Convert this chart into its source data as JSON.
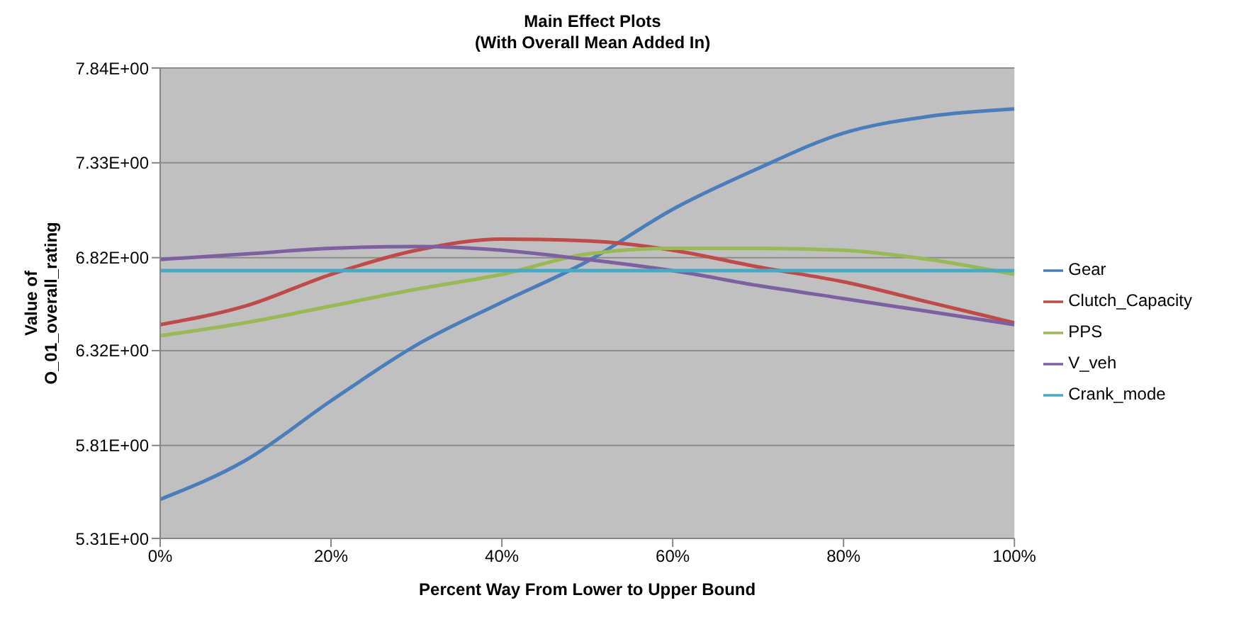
{
  "chart_data": {
    "type": "line",
    "title": "Main Effect Plots",
    "subtitle": "(With Overall Mean Added In)",
    "xlabel": "Percent Way From Lower to Upper Bound",
    "ylabel": "Value of\nO_01_overall_rating",
    "x": [
      0,
      10,
      20,
      30,
      40,
      50,
      60,
      70,
      80,
      90,
      100
    ],
    "series": [
      {
        "name": "Gear",
        "color": "#4a7ebb",
        "values": [
          5.52,
          5.73,
          6.05,
          6.35,
          6.58,
          6.8,
          7.08,
          7.3,
          7.49,
          7.58,
          7.62
        ]
      },
      {
        "name": "Clutch_Capacity",
        "color": "#be4b48",
        "values": [
          6.46,
          6.56,
          6.73,
          6.86,
          6.92,
          6.91,
          6.86,
          6.77,
          6.69,
          6.58,
          6.47
        ]
      },
      {
        "name": "PPS",
        "color": "#98b954",
        "values": [
          6.4,
          6.47,
          6.56,
          6.65,
          6.73,
          6.84,
          6.87,
          6.87,
          6.86,
          6.81,
          6.73
        ]
      },
      {
        "name": "V_veh",
        "color": "#7d60a0",
        "values": [
          6.81,
          6.84,
          6.87,
          6.88,
          6.86,
          6.81,
          6.75,
          6.67,
          6.6,
          6.53,
          6.46
        ]
      },
      {
        "name": "Crank_mode",
        "color": "#46aac5",
        "values": [
          6.75,
          6.75,
          6.75,
          6.75,
          6.75,
          6.75,
          6.75,
          6.75,
          6.75,
          6.75,
          6.75
        ]
      }
    ],
    "xlim": [
      0,
      100
    ],
    "xticks": [
      {
        "value": 0,
        "label": "0%"
      },
      {
        "value": 20,
        "label": "20%"
      },
      {
        "value": 40,
        "label": "40%"
      },
      {
        "value": 60,
        "label": "60%"
      },
      {
        "value": 80,
        "label": "80%"
      },
      {
        "value": 100,
        "label": "100%"
      }
    ],
    "ylim": [
      5.31,
      7.84
    ],
    "yticks": [
      {
        "value": 5.31,
        "label": "5.31E+00"
      },
      {
        "value": 5.81,
        "label": "5.81E+00"
      },
      {
        "value": 6.32,
        "label": "6.32E+00"
      },
      {
        "value": 6.82,
        "label": "6.82E+00"
      },
      {
        "value": 7.33,
        "label": "7.33E+00"
      },
      {
        "value": 7.84,
        "label": "7.84E+00"
      }
    ],
    "grid": "y",
    "legend": "right",
    "marker": "none",
    "line_style": "solid"
  }
}
